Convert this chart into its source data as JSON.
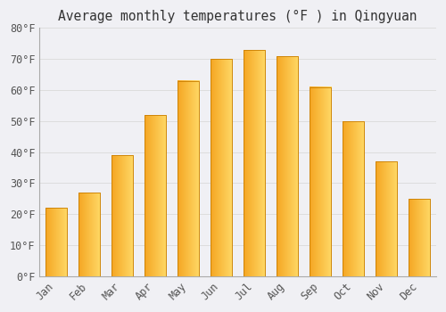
{
  "title": "Average monthly temperatures (°F ) in Qingyuan",
  "months": [
    "Jan",
    "Feb",
    "Mar",
    "Apr",
    "May",
    "Jun",
    "Jul",
    "Aug",
    "Sep",
    "Oct",
    "Nov",
    "Dec"
  ],
  "values": [
    22,
    27,
    39,
    52,
    63,
    70,
    73,
    71,
    61,
    50,
    37,
    25
  ],
  "bar_color_left": "#F5A623",
  "bar_color_right": "#FFD966",
  "bar_edge_color": "#C87D00",
  "background_color": "#F0F0F4",
  "plot_bg_color": "#F0F0F4",
  "grid_color": "#DDDDDD",
  "title_color": "#333333",
  "tick_label_color": "#555555",
  "ylim": [
    0,
    80
  ],
  "yticks": [
    0,
    10,
    20,
    30,
    40,
    50,
    60,
    70,
    80
  ],
  "title_fontsize": 10.5,
  "tick_fontsize": 8.5,
  "font_family": "monospace"
}
